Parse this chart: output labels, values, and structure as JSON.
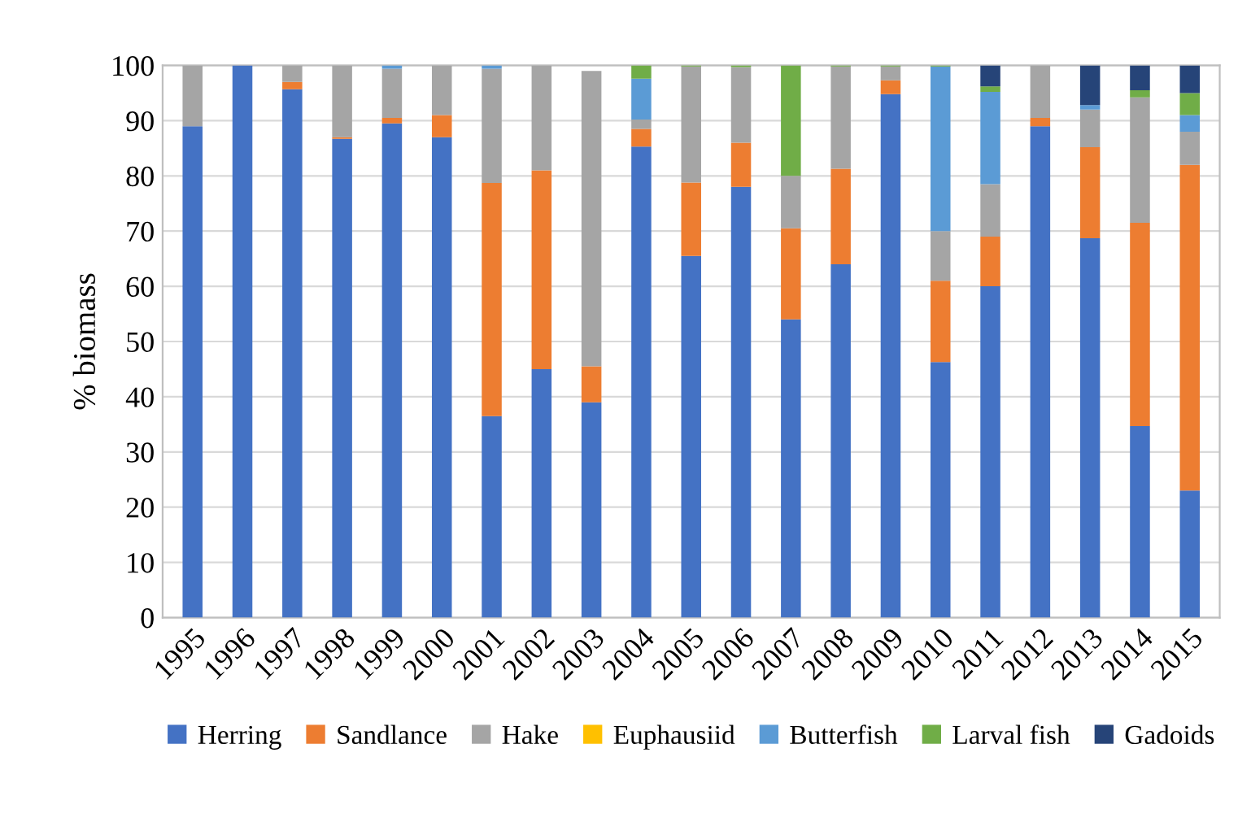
{
  "chart_data": {
    "type": "bar",
    "stacked": true,
    "ylabel": "% biomass",
    "categories": [
      "1995",
      "1996",
      "1997",
      "1998",
      "1999",
      "2000",
      "2001",
      "2002",
      "2003",
      "2004",
      "2005",
      "2006",
      "2007",
      "2008",
      "2009",
      "2010",
      "2011",
      "2012",
      "2013",
      "2014",
      "2015"
    ],
    "series": [
      {
        "name": "Herring",
        "color": "#4472c4",
        "values": [
          89,
          100,
          95.7,
          86.7,
          89.5,
          87,
          36.5,
          45,
          39,
          85.3,
          65.5,
          78,
          54,
          64,
          94.8,
          46.3,
          60,
          89,
          68.7,
          34.7,
          23
        ]
      },
      {
        "name": "Sandlance",
        "color": "#ed7d31",
        "values": [
          0,
          0,
          1.3,
          0.3,
          1,
          4,
          42.2,
          36,
          6.5,
          3.2,
          13.3,
          8,
          16.5,
          17.3,
          2.5,
          14.7,
          9,
          1.5,
          16.5,
          36.8,
          59
        ]
      },
      {
        "name": "Hake",
        "color": "#a5a5a5",
        "values": [
          11,
          0,
          3,
          13,
          8.9,
          9,
          20.7,
          19,
          53.5,
          1.7,
          21,
          13.7,
          9.5,
          18.5,
          2.5,
          9,
          9.5,
          9.5,
          6.8,
          22.7,
          6
        ]
      },
      {
        "name": "Euphausiid",
        "color": "#ffc000",
        "values": [
          0,
          0,
          0,
          0,
          0,
          0,
          0,
          0,
          0,
          0,
          0,
          0,
          0,
          0,
          0,
          0,
          0,
          0,
          0,
          0,
          0
        ]
      },
      {
        "name": "Butterfish",
        "color": "#5b9bd5",
        "values": [
          0,
          0,
          0,
          0,
          0.6,
          0,
          0.6,
          0,
          0,
          7.4,
          0,
          0,
          0,
          0,
          0,
          29.8,
          16.7,
          0,
          0.8,
          0,
          3
        ]
      },
      {
        "name": "Larval fish",
        "color": "#70ad47",
        "values": [
          0,
          0,
          0,
          0,
          0,
          0,
          0,
          0,
          0,
          2.4,
          0.2,
          0.3,
          20,
          0.2,
          0.2,
          0.2,
          1,
          0,
          0,
          1.3,
          4
        ]
      },
      {
        "name": "Gadoids",
        "color": "#264478",
        "values": [
          0,
          0,
          0,
          0,
          0,
          0,
          0,
          0,
          0,
          0,
          0,
          0,
          0,
          0,
          0,
          0,
          3.8,
          0,
          7.2,
          4.5,
          5
        ]
      }
    ],
    "ylim": [
      0,
      100
    ],
    "yticks": [
      0,
      10,
      20,
      30,
      40,
      50,
      60,
      70,
      80,
      90,
      100
    ],
    "grid": "y",
    "legend": "bottom"
  }
}
